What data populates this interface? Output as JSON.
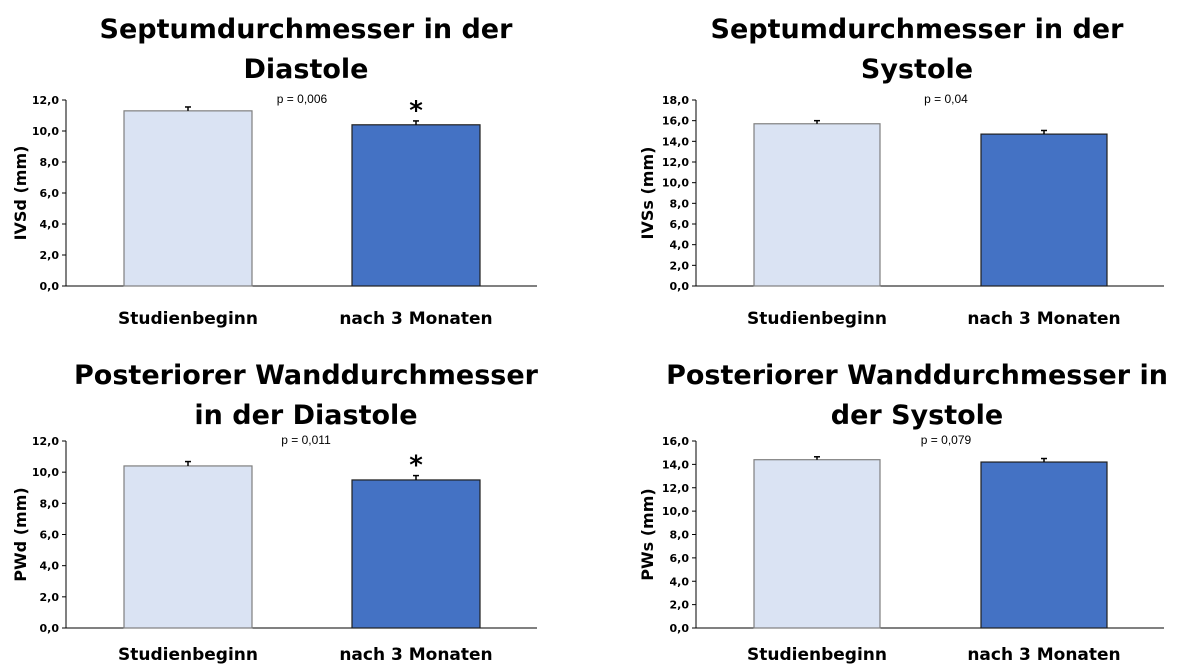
{
  "chart_data": [
    {
      "type": "bar",
      "title_lines": [
        "Septumdurchmesser in der",
        "Diastole"
      ],
      "ylabel": "IVSd (mm)",
      "xlabel": "",
      "categories": [
        "Studienbeginn",
        "nach 3 Monaten"
      ],
      "values": [
        11.3,
        10.4
      ],
      "errors": [
        0.25,
        0.25
      ],
      "bar_colors": [
        "#dae3f3",
        "#4472c4"
      ],
      "ylim": [
        0,
        12
      ],
      "yticks": [
        "0,0",
        "2,0",
        "4,0",
        "6,0",
        "8,0",
        "10,0",
        "12,0"
      ],
      "annotation": "p = 0,006",
      "significance_marker": "*",
      "grid": false
    },
    {
      "type": "bar",
      "title_lines": [
        "Septumdurchmesser in der",
        "Systole"
      ],
      "ylabel": "IVSs (mm)",
      "xlabel": "",
      "categories": [
        "Studienbeginn",
        "nach 3 Monaten"
      ],
      "values": [
        15.7,
        14.7
      ],
      "errors": [
        0.3,
        0.35
      ],
      "bar_colors": [
        "#dae3f3",
        "#4472c4"
      ],
      "ylim": [
        0,
        18
      ],
      "yticks": [
        "0,0",
        "2,0",
        "4,0",
        "6,0",
        "8,0",
        "10,0",
        "12,0",
        "14,0",
        "16,0",
        "18,0"
      ],
      "annotation": "p = 0,04",
      "significance_marker": "",
      "grid": false
    },
    {
      "type": "bar",
      "title_lines": [
        "Posteriorer Wanddurchmesser",
        "in der Diastole"
      ],
      "ylabel": "PWd (mm)",
      "xlabel": "",
      "categories": [
        "Studienbeginn",
        "nach 3 Monaten"
      ],
      "values": [
        10.4,
        9.5
      ],
      "errors": [
        0.28,
        0.28
      ],
      "bar_colors": [
        "#dae3f3",
        "#4472c4"
      ],
      "ylim": [
        0,
        12
      ],
      "yticks": [
        "0,0",
        "2,0",
        "4,0",
        "6,0",
        "8,0",
        "10,0",
        "12,0"
      ],
      "annotation": "p = 0,011",
      "significance_marker": "*",
      "grid": false
    },
    {
      "type": "bar",
      "title_lines": [
        "Posteriorer Wanddurchmesser in",
        "der Systole"
      ],
      "ylabel": "PWs (mm)",
      "xlabel": "",
      "categories": [
        "Studienbeginn",
        "nach 3 Monaten"
      ],
      "values": [
        14.4,
        14.2
      ],
      "errors": [
        0.25,
        0.3
      ],
      "bar_colors": [
        "#dae3f3",
        "#4472c4"
      ],
      "ylim": [
        0,
        16
      ],
      "yticks": [
        "0,0",
        "2,0",
        "4,0",
        "6,0",
        "8,0",
        "10,0",
        "12,0",
        "14,0",
        "16,0"
      ],
      "annotation": "p = 0,079",
      "significance_marker": "",
      "grid": false
    }
  ]
}
